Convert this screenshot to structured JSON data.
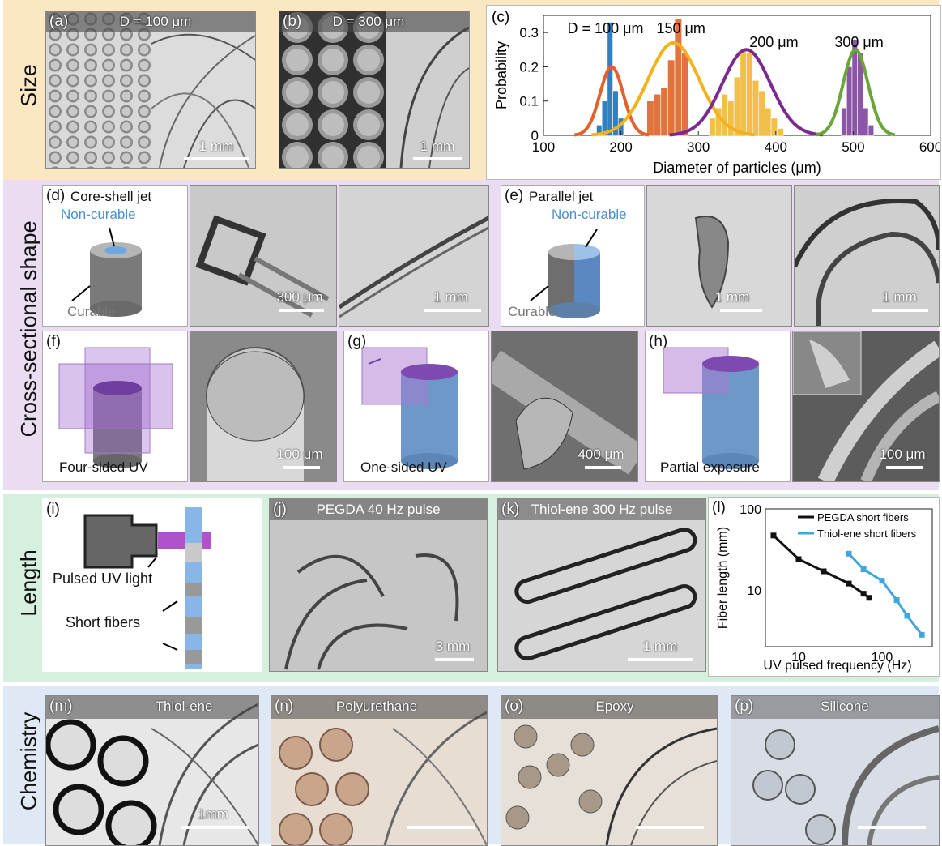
{
  "rows": {
    "size": "Size",
    "shape": "Cross-sectional shape",
    "length": "Length",
    "chemistry": "Chemistry"
  },
  "panels": {
    "a": {
      "tag": "(a)",
      "title": "D = 100 μm",
      "scale": "1 mm"
    },
    "b": {
      "tag": "(b)",
      "title": "D = 300 μm",
      "scale": "1 mm"
    },
    "d": {
      "tag": "(d)",
      "title": "Core-shell jet",
      "noncurable": "Non-curable",
      "curable": "Curable",
      "scale1": "300 μm",
      "scale2": "1 mm"
    },
    "e": {
      "tag": "(e)",
      "title": "Parallel jet",
      "noncurable": "Non-curable",
      "curable": "Curable",
      "scale1": "1 mm",
      "scale2": "1 mm"
    },
    "f": {
      "tag": "(f)",
      "caption": "Four-sided UV",
      "scale": "100 μm"
    },
    "g": {
      "tag": "(g)",
      "caption": "One-sided UV",
      "scale": "400 μm"
    },
    "h": {
      "tag": "(h)",
      "caption": "Partial exposure",
      "scale": "100 μm"
    },
    "i": {
      "tag": "(i)",
      "light": "Pulsed UV light",
      "fibers": "Short fibers"
    },
    "j": {
      "tag": "(j)",
      "title": "PEGDA   40 Hz pulse",
      "scale": "3 mm"
    },
    "k": {
      "tag": "(k)",
      "title": "Thiol-ene 300 Hz pulse",
      "scale": "1 mm"
    },
    "l": {
      "tag": "(l)"
    },
    "m": {
      "tag": "(m)",
      "title": "Thiol-ene",
      "scale": "1mm"
    },
    "n": {
      "tag": "(n)",
      "title": "Polyurethane"
    },
    "o": {
      "tag": "(o)",
      "title": "Epoxy"
    },
    "p": {
      "tag": "(p)",
      "title": "Silicone"
    }
  },
  "chart_data": [
    {
      "panel": "(c)",
      "type": "bar",
      "xlabel": "Diameter of particles (μm)",
      "ylabel": "Probability",
      "xlim": [
        100,
        600
      ],
      "ylim": [
        0,
        0.35
      ],
      "xticks": [
        100,
        200,
        300,
        400,
        500,
        600
      ],
      "yticks": [
        0,
        0.1,
        0.2,
        0.3
      ],
      "annotations": [
        "D = 100 μm",
        "150 μm",
        "200 μm",
        "300 μm"
      ],
      "series": [
        {
          "name": "D = 100 μm",
          "color": "#2f7fc1",
          "bin_width": 7,
          "x": [
            172,
            179,
            186,
            193,
            200
          ],
          "values": [
            0.03,
            0.1,
            0.33,
            0.13,
            0.05
          ],
          "fit_color": "#e2622d",
          "fit_mean": 188,
          "fit_sd": 15,
          "fit_peak": 0.2
        },
        {
          "name": "150 μm",
          "color": "#e0733e",
          "bin_width": 9,
          "x": [
            238,
            247,
            256,
            265,
            274,
            283
          ],
          "values": [
            0.1,
            0.12,
            0.14,
            0.22,
            0.34,
            0.24
          ],
          "fit_color": "#f2b21c",
          "fit_mean": 268,
          "fit_sd": 33,
          "fit_peak": 0.27
        },
        {
          "name": "200 μm",
          "color": "#f2c04a",
          "bin_width": 8,
          "x": [
            318,
            326,
            334,
            342,
            350,
            358,
            366,
            374,
            382,
            390,
            398,
            406
          ],
          "values": [
            0.05,
            0.08,
            0.12,
            0.1,
            0.17,
            0.25,
            0.24,
            0.16,
            0.13,
            0.08,
            0.05,
            0.02
          ],
          "fit_color": "#7b2a8e",
          "fit_mean": 362,
          "fit_sd": 31,
          "fit_peak": 0.25
        },
        {
          "name": "300 μm",
          "color": "#8b55a8",
          "bin_width": 7,
          "x": [
            488,
            495,
            502,
            509,
            516,
            523
          ],
          "values": [
            0.08,
            0.2,
            0.28,
            0.24,
            0.08,
            0.03
          ],
          "fit_color": "#6aa53a",
          "fit_mean": 503,
          "fit_sd": 16,
          "fit_peak": 0.25
        }
      ]
    },
    {
      "panel": "(l)",
      "type": "line",
      "xlabel": "UV pulsed frequency (Hz)",
      "ylabel": "Fiber length (mm)",
      "xscale": "log",
      "yscale": "log",
      "xlim": [
        4,
        400
      ],
      "ylim": [
        2,
        100
      ],
      "xticks": [
        10,
        100
      ],
      "yticks": [
        10,
        100
      ],
      "legend": "top-right",
      "series": [
        {
          "name": "PEGDA short fibers",
          "color": "#111111",
          "x": [
            5,
            10,
            20,
            40,
            60,
            70
          ],
          "values": [
            47,
            24,
            17,
            12,
            9,
            8
          ]
        },
        {
          "name": "Thiol-ene short fibers",
          "color": "#3fa7dd",
          "x": [
            40,
            60,
            100,
            150,
            200,
            300
          ],
          "values": [
            28,
            18,
            13,
            7.5,
            4.8,
            2.8
          ]
        }
      ]
    }
  ]
}
